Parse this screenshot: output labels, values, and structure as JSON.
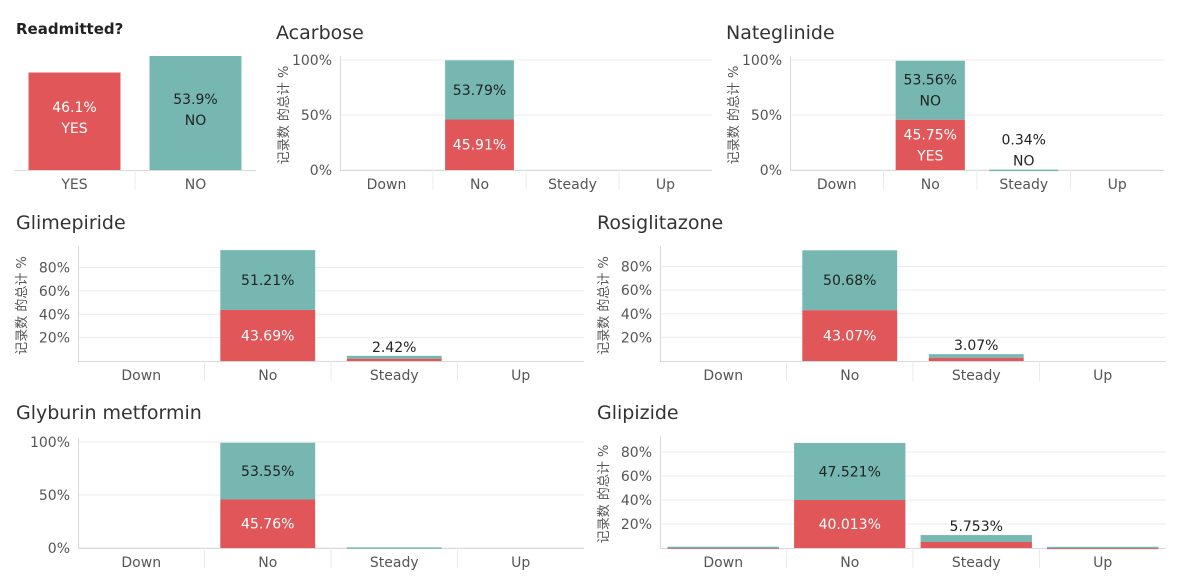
{
  "colors": {
    "yes": "#e15759",
    "no": "#76b7b2",
    "grid": "#ebebeb",
    "axis": "#d9d9d9",
    "text": "#555555"
  },
  "chart_data": [
    {
      "type": "bar",
      "title": "Readmitted?",
      "categories": [
        "YES",
        "NO"
      ],
      "series": [
        {
          "name": "",
          "values": [
            46.1,
            53.9
          ]
        }
      ],
      "labels": [
        [
          "46.1%",
          "YES"
        ],
        [
          "53.9%",
          "NO"
        ]
      ],
      "ylim": [
        0,
        53.9
      ],
      "ylabel": "",
      "yticks": [],
      "grid": true
    },
    {
      "type": "bar",
      "stacked": true,
      "title": "Acarbose",
      "ylabel": "记录数 的总计 %",
      "categories": [
        "Down",
        "No",
        "Steady",
        "Up"
      ],
      "ylim": [
        0,
        100
      ],
      "yticks": [
        "0%",
        "50%",
        "100%"
      ],
      "grid": true,
      "series": [
        {
          "name": "YES",
          "values": [
            0,
            45.91,
            0,
            0
          ]
        },
        {
          "name": "NO",
          "values": [
            0,
            53.79,
            0,
            0
          ]
        }
      ],
      "labels": [
        [],
        [
          [
            "45.91%"
          ],
          [
            "53.79%"
          ]
        ],
        [],
        []
      ]
    },
    {
      "type": "bar",
      "stacked": true,
      "title": "Nateglinide",
      "ylabel": "记录数 的总计 %",
      "categories": [
        "Down",
        "No",
        "Steady",
        "Up"
      ],
      "ylim": [
        0,
        100
      ],
      "yticks": [
        "0%",
        "50%",
        "100%"
      ],
      "grid": true,
      "series": [
        {
          "name": "YES",
          "values": [
            0,
            45.75,
            0,
            0
          ]
        },
        {
          "name": "NO",
          "values": [
            0,
            53.56,
            0.34,
            0
          ]
        }
      ],
      "labels": [
        [],
        [
          [
            "45.75%",
            "YES"
          ],
          [
            "53.56%",
            "NO"
          ]
        ],
        [
          [],
          [
            "0.34%",
            "NO"
          ]
        ],
        []
      ]
    },
    {
      "type": "bar",
      "stacked": true,
      "title": "Glimepiride",
      "ylabel": "记录数 的总计 %",
      "categories": [
        "Down",
        "No",
        "Steady",
        "Up"
      ],
      "ylim": [
        0,
        95
      ],
      "yticks": [
        "20%",
        "40%",
        "60%",
        "80%"
      ],
      "grid": true,
      "series": [
        {
          "name": "YES",
          "values": [
            0,
            43.69,
            2.0,
            0
          ]
        },
        {
          "name": "NO",
          "values": [
            0,
            51.21,
            2.42,
            0
          ]
        }
      ],
      "labels": [
        [],
        [
          [
            "43.69%"
          ],
          [
            "51.21%"
          ]
        ],
        [
          [],
          [
            "2.42%"
          ]
        ],
        []
      ]
    },
    {
      "type": "bar",
      "stacked": true,
      "title": "Rosiglitazone",
      "ylabel": "记录数 的总计 %",
      "categories": [
        "Down",
        "No",
        "Steady",
        "Up"
      ],
      "ylim": [
        0,
        94
      ],
      "yticks": [
        "20%",
        "40%",
        "60%",
        "80%"
      ],
      "grid": true,
      "series": [
        {
          "name": "YES",
          "values": [
            0,
            43.07,
            2.7,
            0
          ]
        },
        {
          "name": "NO",
          "values": [
            0,
            50.68,
            3.07,
            0
          ]
        }
      ],
      "labels": [
        [],
        [
          [
            "43.07%"
          ],
          [
            "50.68%"
          ]
        ],
        [
          [],
          [
            "3.07%"
          ]
        ],
        []
      ]
    },
    {
      "type": "bar",
      "stacked": true,
      "title": "Glyburin metformin",
      "ylabel": "",
      "categories": [
        "Down",
        "No",
        "Steady",
        "Up"
      ],
      "ylim": [
        0,
        100
      ],
      "yticks": [
        "0%",
        "50%",
        "100%"
      ],
      "grid": true,
      "series": [
        {
          "name": "YES",
          "values": [
            0,
            45.76,
            0,
            0
          ]
        },
        {
          "name": "NO",
          "values": [
            0,
            53.55,
            0.6,
            0
          ]
        }
      ],
      "labels": [
        [],
        [
          [
            "45.76%"
          ],
          [
            "53.55%"
          ]
        ],
        [],
        []
      ]
    },
    {
      "type": "bar",
      "stacked": true,
      "title": "Glipizide",
      "ylabel": "记录数 的总计 %",
      "categories": [
        "Down",
        "No",
        "Steady",
        "Up"
      ],
      "ylim": [
        0,
        90
      ],
      "yticks": [
        "20%",
        "40%",
        "60%",
        "80%"
      ],
      "grid": true,
      "series": [
        {
          "name": "YES",
          "values": [
            0.5,
            40.013,
            5.0,
            0.3
          ]
        },
        {
          "name": "NO",
          "values": [
            0.6,
            47.521,
            5.753,
            0.7
          ]
        }
      ],
      "labels": [
        [],
        [
          [
            "40.013%"
          ],
          [
            "47.521%"
          ]
        ],
        [
          [],
          [
            "5.753%"
          ]
        ],
        []
      ]
    }
  ]
}
